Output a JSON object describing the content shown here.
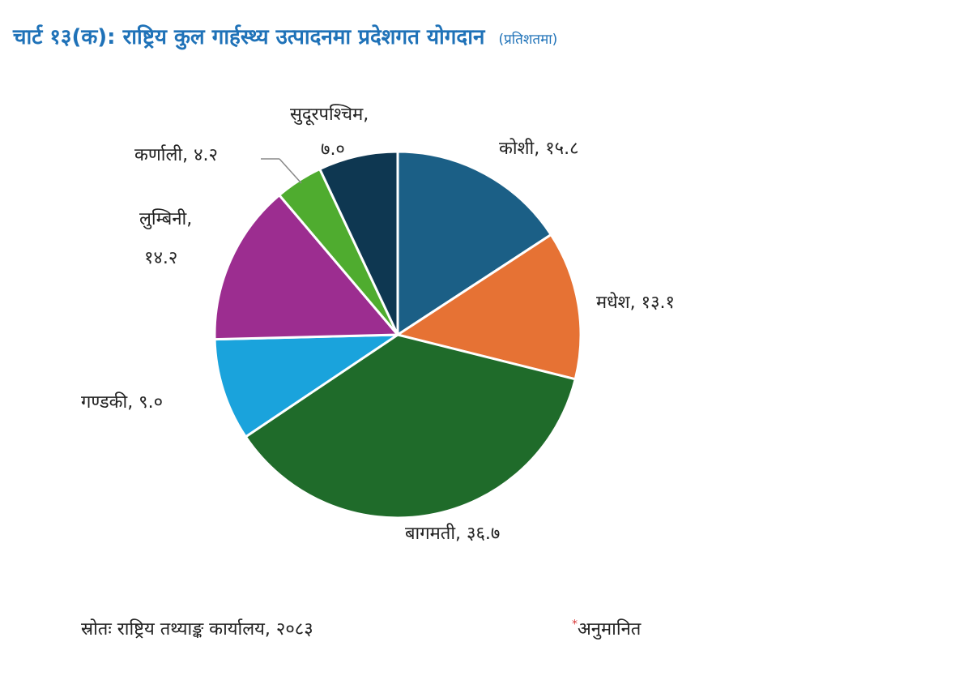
{
  "title": {
    "main": "चार्ट १३(क): राष्ट्रिय कुल गार्हस्थ्य उत्पादनमा प्रदेशगत योगदान",
    "unit": "(प्रतिशतमा)"
  },
  "chart_data": {
    "type": "pie",
    "title": "चार्ट १३(क): राष्ट्रिय कुल गार्हस्थ्य उत्पादनमा प्रदेशगत योगदान",
    "unit": "प्रतिशतमा",
    "slices": [
      {
        "name": "कोशी",
        "value": 15.8,
        "value_label": "१५.८",
        "color": "#1b5f86"
      },
      {
        "name": "मधेश",
        "value": 13.1,
        "value_label": "१३.१",
        "color": "#e67234"
      },
      {
        "name": "बागमती",
        "value": 36.7,
        "value_label": "३६.७",
        "color": "#1f6b2a"
      },
      {
        "name": "गण्डकी",
        "value": 9.0,
        "value_label": "९.०",
        "color": "#1aa3dc"
      },
      {
        "name": "लुम्बिनी",
        "value": 14.2,
        "value_label": "१४.२",
        "color": "#9c2d90"
      },
      {
        "name": "कर्णाली",
        "value": 4.2,
        "value_label": "४.२",
        "color": "#4fac2f"
      },
      {
        "name": "सुदूरपश्चिम",
        "value": 7.0,
        "value_label": "७.०",
        "color": "#0e3751"
      }
    ]
  },
  "labels": {
    "koshi": "कोशी, १५.८",
    "madhesh": "मधेश, १३.१",
    "bagmati": "बागमती, ३६.७",
    "gandaki": "गण्डकी, ९.०",
    "lumbini_name": "लुम्बिनी,",
    "lumbini_value": "१४.२",
    "karnali": "कर्णाली, ४.२",
    "sudur_name": "सुदूरपश्चिम,",
    "sudur_value": "७.०"
  },
  "footer": {
    "source": "स्रोतः राष्ट्रिय तथ्याङ्क कार्यालय, २०८३",
    "note_marker": "*",
    "note": "अनुमानित"
  }
}
